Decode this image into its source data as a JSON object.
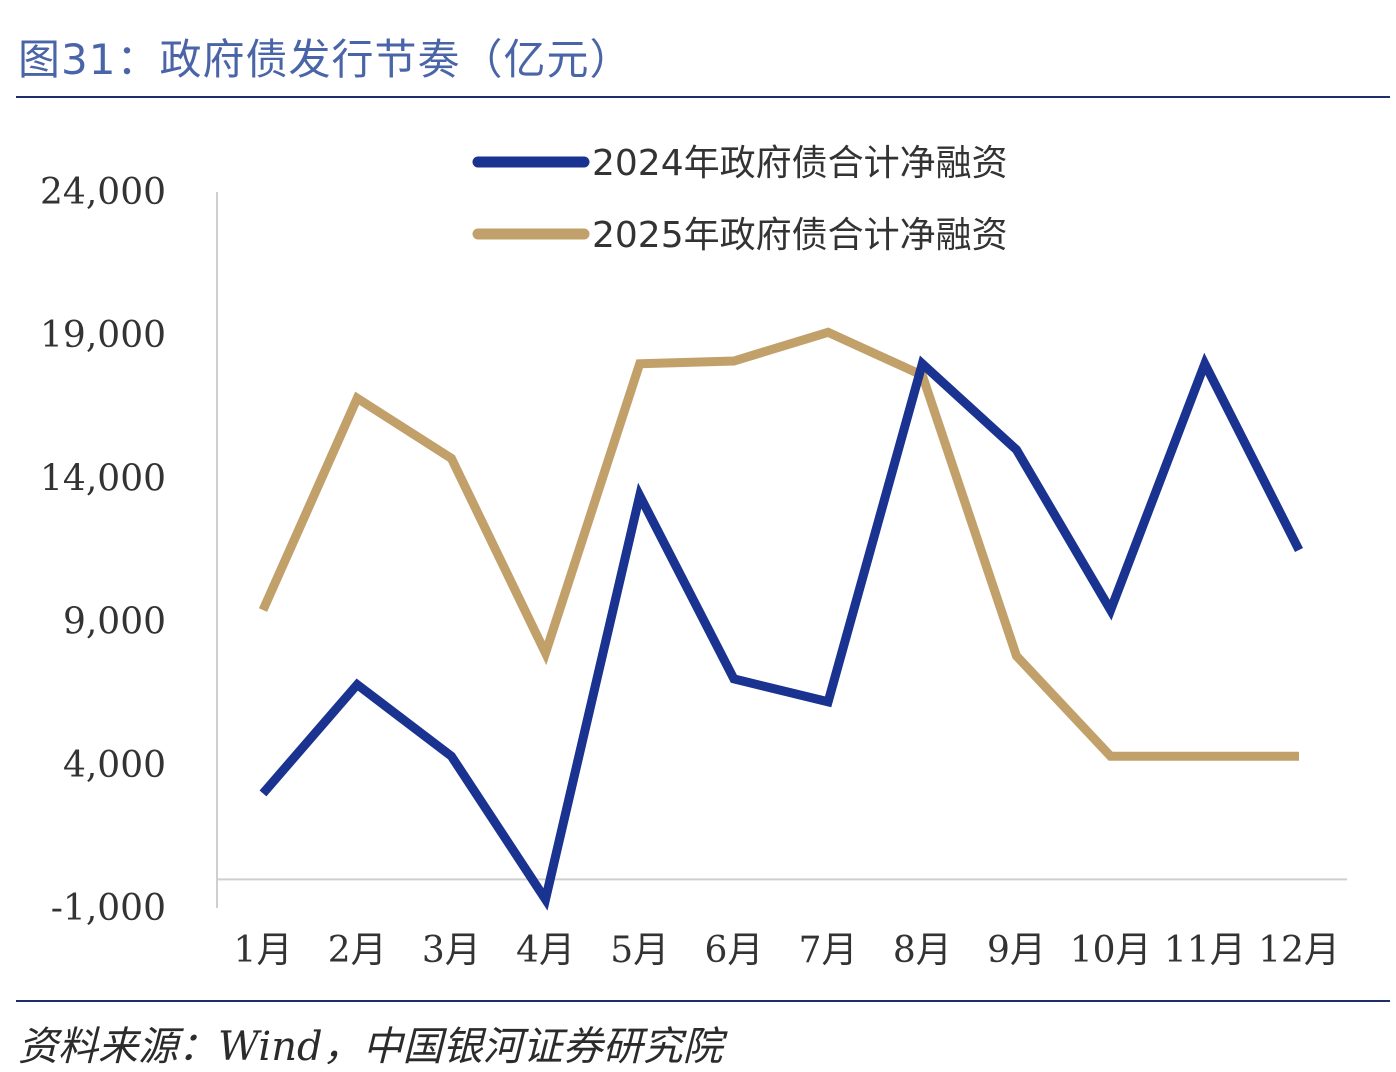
{
  "header": {
    "title": "图31：政府债发行节奏（亿元）"
  },
  "footer": {
    "source": "资料来源：Wind，中国银河证券研究院"
  },
  "chart_data": {
    "type": "line",
    "title": "图31：政府债发行节奏（亿元）",
    "xlabel": "",
    "ylabel": "",
    "categories": [
      "1月",
      "2月",
      "3月",
      "4月",
      "5月",
      "6月",
      "7月",
      "8月",
      "9月",
      "10月",
      "11月",
      "12月"
    ],
    "yticks": [
      "24,000",
      "19,000",
      "14,000",
      "9,000",
      "4,000",
      "-1,000"
    ],
    "ylim": [
      -1000,
      24000
    ],
    "grid": false,
    "legend_position": "top",
    "series": [
      {
        "name": "2024年政府债合计净融资",
        "color": "#1a3391",
        "values": [
          3000,
          6800,
          4300,
          -700,
          13400,
          7000,
          6200,
          18000,
          15000,
          9400,
          18000,
          11500
        ]
      },
      {
        "name": "2025年政府债合计净融资",
        "color": "#c2a06a",
        "values": [
          9400,
          16800,
          14700,
          7900,
          18000,
          18100,
          19100,
          17600,
          7800,
          4300,
          4300,
          4300
        ]
      }
    ]
  }
}
